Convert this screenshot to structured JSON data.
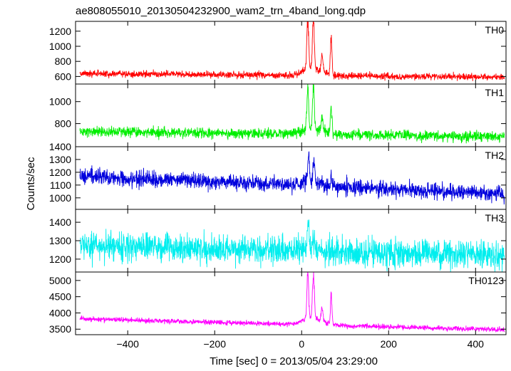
{
  "chart_data": {
    "type": "line",
    "title": "ae808055010_20130504232900_wam2_trn_4band_long.qdp",
    "xlabel": "Time [sec] 0 = 2013/05/04 23:29:00",
    "ylabel": "Counts/sec",
    "xlim": [
      -520,
      470
    ],
    "xticks": [
      -400,
      -200,
      0,
      200,
      400
    ],
    "xtick_labels": [
      "−400",
      "−200",
      "0",
      "200",
      "400"
    ],
    "panels": [
      {
        "name": "TH0",
        "color": "#ff0000",
        "ylim": [
          500,
          1330
        ],
        "yticks": [
          600,
          800,
          1000,
          1200
        ],
        "yticklabels": [
          "600",
          "800",
          "1000",
          "1200"
        ],
        "baseline_start": 640,
        "baseline_end": 590,
        "noise": 32,
        "peaks": [
          {
            "t": 14,
            "amp": 680,
            "w": 3
          },
          {
            "t": 27,
            "amp": 700,
            "w": 3
          },
          {
            "t": 47,
            "amp": 230,
            "w": 3
          },
          {
            "t": 68,
            "amp": 560,
            "w": 2.5
          }
        ],
        "hump": {
          "t": 25,
          "amp": 90,
          "w": 30
        }
      },
      {
        "name": "TH1",
        "color": "#00ee00",
        "ylim": [
          590,
          1160
        ],
        "yticks": [
          800,
          1000
        ],
        "yticklabels": [
          "800",
          "1000"
        ],
        "baseline_start": 730,
        "baseline_end": 680,
        "noise": 34,
        "peaks": [
          {
            "t": 14,
            "amp": 400,
            "w": 3
          },
          {
            "t": 27,
            "amp": 420,
            "w": 3
          },
          {
            "t": 47,
            "amp": 120,
            "w": 3
          },
          {
            "t": 68,
            "amp": 270,
            "w": 2.5
          }
        ],
        "hump": {
          "t": 25,
          "amp": 50,
          "w": 30
        }
      },
      {
        "name": "TH2",
        "color": "#0000dd",
        "ylim": [
          910,
          1400
        ],
        "yticks": [
          1000,
          1100,
          1200,
          1300,
          1400
        ],
        "yticklabels": [
          "1000",
          "1100",
          "1200",
          "1300",
          "1400"
        ],
        "baseline_start": 1170,
        "baseline_end": 1030,
        "noise": 45,
        "peaks": [
          {
            "t": 16,
            "amp": 220,
            "w": 3
          },
          {
            "t": 28,
            "amp": 160,
            "w": 3
          },
          {
            "t": 68,
            "amp": 90,
            "w": 2.5
          }
        ],
        "hump": {
          "t": 25,
          "amp": 30,
          "w": 30
        }
      },
      {
        "name": "TH3",
        "color": "#00eeee",
        "ylim": [
          1130,
          1470
        ],
        "yticks": [
          1200,
          1300,
          1400
        ],
        "yticklabels": [
          "1200",
          "1300",
          "1400"
        ],
        "baseline_start": 1270,
        "baseline_end": 1220,
        "noise": 55,
        "peaks": [
          {
            "t": 15,
            "amp": 150,
            "w": 3
          },
          {
            "t": 27,
            "amp": 80,
            "w": 3
          }
        ],
        "hump": {
          "t": 20,
          "amp": 10,
          "w": 30
        }
      },
      {
        "name": "TH0123",
        "color": "#ff00ff",
        "ylim": [
          3330,
          5260
        ],
        "yticks": [
          3500,
          4000,
          4500,
          5000
        ],
        "yticklabels": [
          "3500",
          "4000",
          "4500",
          "5000"
        ],
        "baseline_start": 3820,
        "baseline_end": 3480,
        "noise": 55,
        "peaks": [
          {
            "t": 14,
            "amp": 1450,
            "w": 3
          },
          {
            "t": 27,
            "amp": 1500,
            "w": 3
          },
          {
            "t": 47,
            "amp": 420,
            "w": 3
          },
          {
            "t": 68,
            "amp": 950,
            "w": 2.5
          }
        ],
        "hump": {
          "t": 25,
          "amp": 200,
          "w": 30
        }
      }
    ]
  }
}
